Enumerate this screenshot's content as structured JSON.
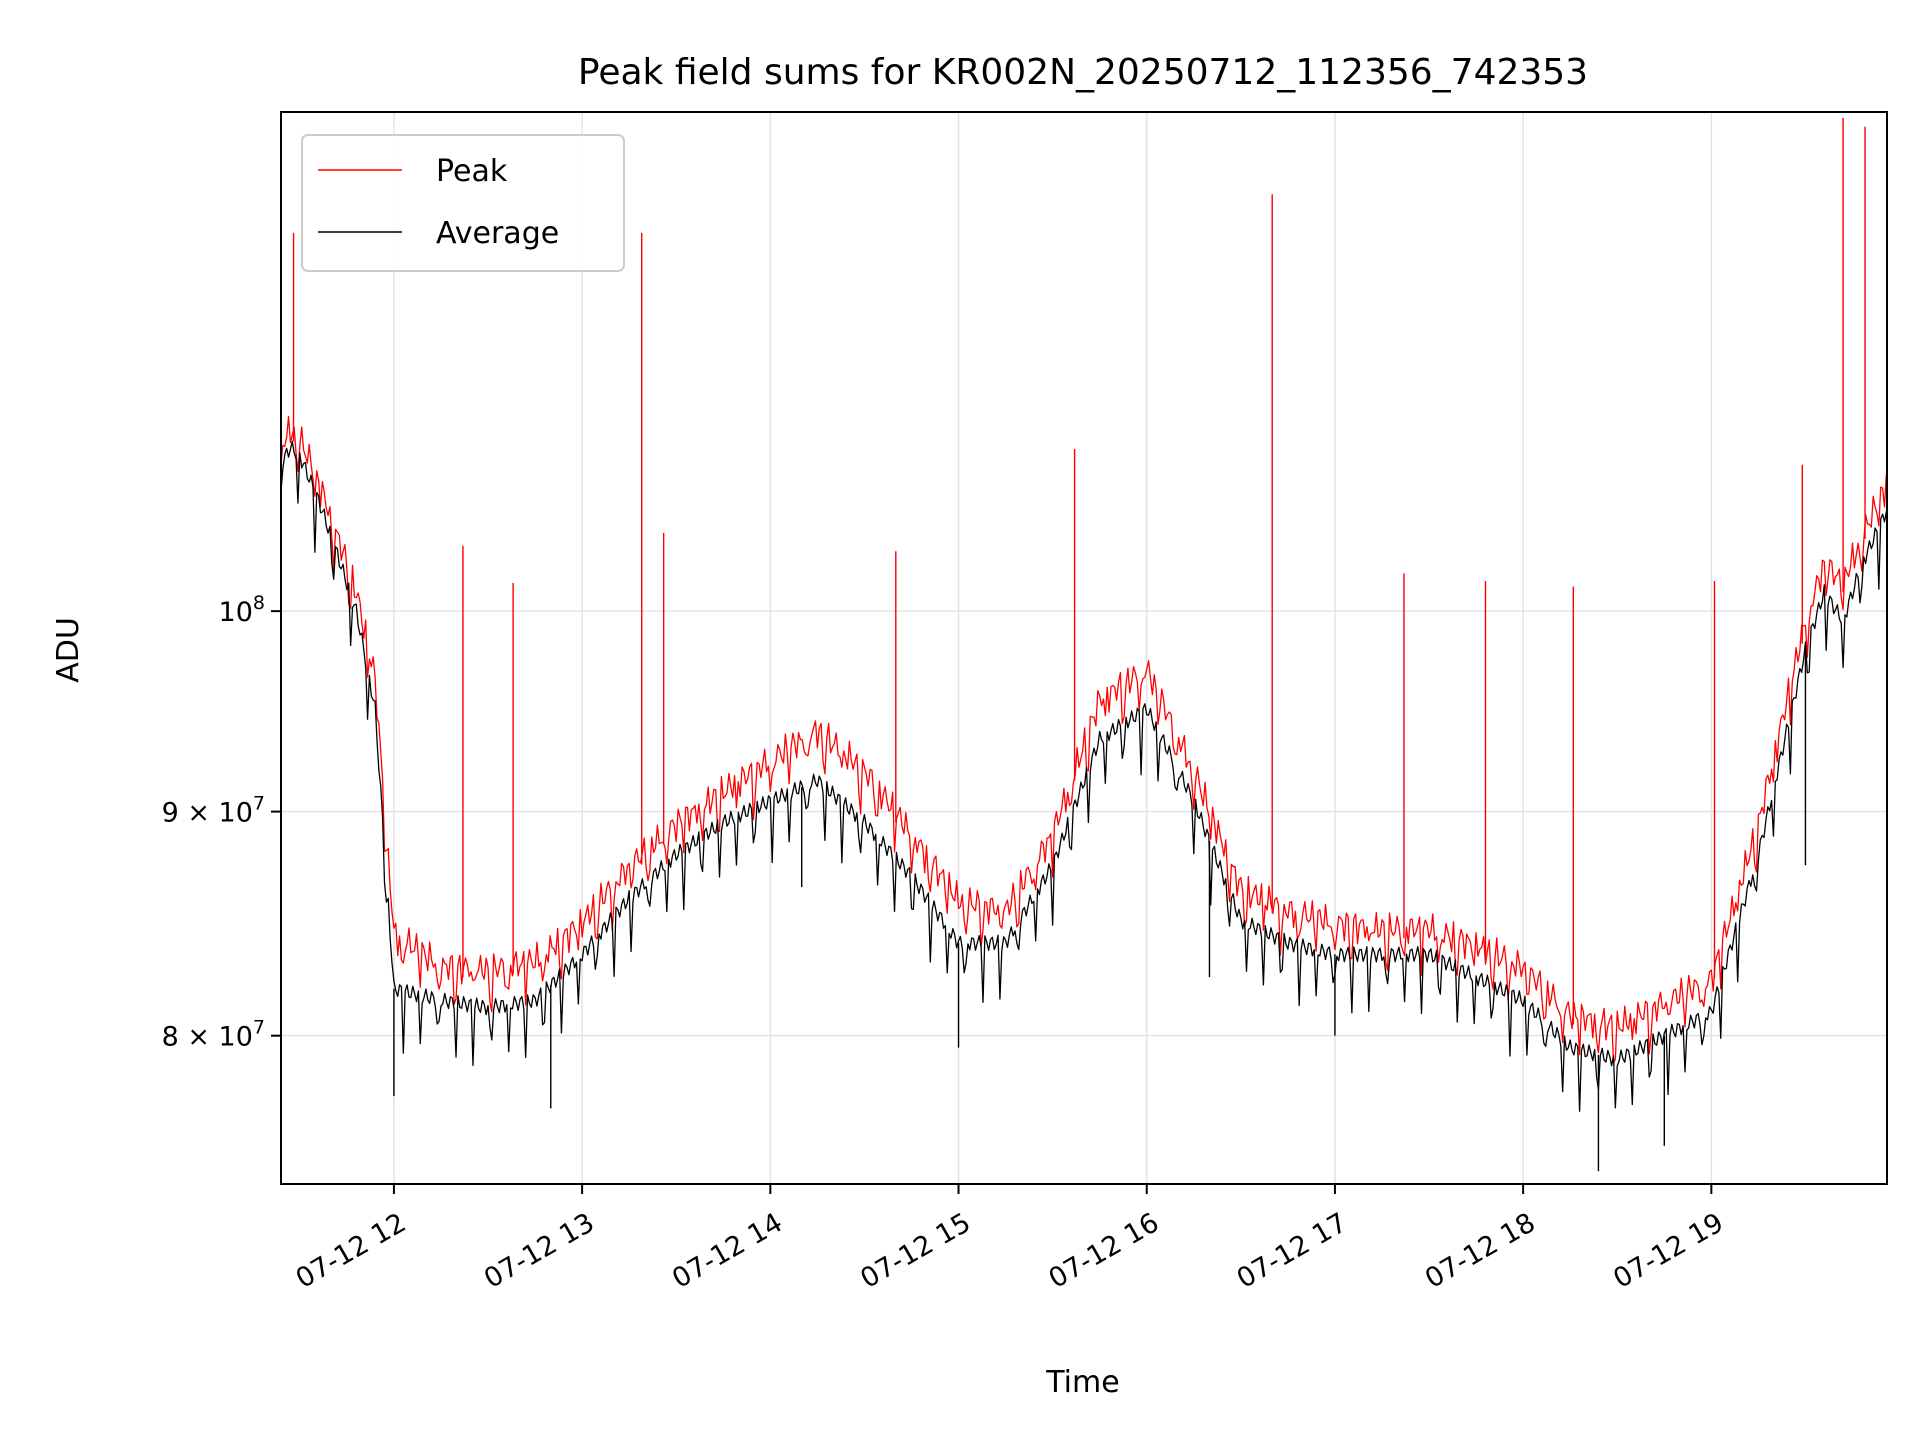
{
  "chart_data": {
    "type": "line",
    "title": "Peak field sums for KR002N_20250712_112356_742353",
    "xlabel": "Time",
    "ylabel": "ADU",
    "y_scale": "log",
    "x_range": [
      "07-12 11:24",
      "07-12 19:56"
    ],
    "ylim": [
      74000000,
      130000000
    ],
    "grid": true,
    "legend_position": "top-left",
    "x_ticks": [
      {
        "time": "07-12 12:00",
        "label": "07-12 12"
      },
      {
        "time": "07-12 13:00",
        "label": "07-12 13"
      },
      {
        "time": "07-12 14:00",
        "label": "07-12 14"
      },
      {
        "time": "07-12 15:00",
        "label": "07-12 15"
      },
      {
        "time": "07-12 16:00",
        "label": "07-12 16"
      },
      {
        "time": "07-12 17:00",
        "label": "07-12 17"
      },
      {
        "time": "07-12 18:00",
        "label": "07-12 18"
      },
      {
        "time": "07-12 19:00",
        "label": "07-12 19"
      }
    ],
    "y_ticks": [
      {
        "value": 80000000,
        "label": "8 × 10",
        "exp": "7"
      },
      {
        "value": 90000000,
        "label": "9 × 10",
        "exp": "7"
      },
      {
        "value": 100000000,
        "label": "10",
        "exp": "8"
      }
    ],
    "series": [
      {
        "name": "Peak",
        "color": "#ff0000",
        "points": [
          [
            "07-12 11:24",
            108500000
          ],
          [
            "07-12 11:27",
            109500000
          ],
          [
            "07-12 11:30",
            109000000
          ],
          [
            "07-12 11:36",
            106500000
          ],
          [
            "07-12 11:42",
            103500000
          ],
          [
            "07-12 11:48",
            100500000
          ],
          [
            "07-12 11:54",
            96000000
          ],
          [
            "07-12 12:00",
            84000000
          ],
          [
            "07-12 12:15",
            82600000
          ],
          [
            "07-12 12:30",
            82400000
          ],
          [
            "07-12 12:45",
            82800000
          ],
          [
            "07-12 13:00",
            84500000
          ],
          [
            "07-12 13:15",
            87000000
          ],
          [
            "07-12 13:30",
            89000000
          ],
          [
            "07-12 13:45",
            90500000
          ],
          [
            "07-12 14:00",
            92000000
          ],
          [
            "07-12 14:15",
            93500000
          ],
          [
            "07-12 14:30",
            91500000
          ],
          [
            "07-12 14:45",
            88500000
          ],
          [
            "07-12 15:00",
            85500000
          ],
          [
            "07-12 15:15",
            85000000
          ],
          [
            "07-12 15:30",
            88500000
          ],
          [
            "07-12 15:45",
            95000000
          ],
          [
            "07-12 16:00",
            96500000
          ],
          [
            "07-12 16:15",
            91500000
          ],
          [
            "07-12 16:30",
            86000000
          ],
          [
            "07-12 16:45",
            85000000
          ],
          [
            "07-12 17:00",
            84500000
          ],
          [
            "07-12 17:15",
            84200000
          ],
          [
            "07-12 17:30",
            84200000
          ],
          [
            "07-12 17:45",
            83500000
          ],
          [
            "07-12 18:00",
            82500000
          ],
          [
            "07-12 18:15",
            80500000
          ],
          [
            "07-12 18:30",
            80000000
          ],
          [
            "07-12 18:45",
            81000000
          ],
          [
            "07-12 19:00",
            82000000
          ],
          [
            "07-12 19:15",
            89000000
          ],
          [
            "07-12 19:30",
            99000000
          ],
          [
            "07-12 19:36",
            102000000
          ],
          [
            "07-12 19:42",
            101000000
          ],
          [
            "07-12 19:48",
            103500000
          ],
          [
            "07-12 19:56",
            106500000
          ]
        ],
        "spikes": [
          [
            "07-12 11:28",
            122000000
          ],
          [
            "07-12 12:22",
            103500000
          ],
          [
            "07-12 12:38",
            101500000
          ],
          [
            "07-12 13:19",
            122000000
          ],
          [
            "07-12 13:26",
            104200000
          ],
          [
            "07-12 14:40",
            103200000
          ],
          [
            "07-12 15:37",
            108900000
          ],
          [
            "07-12 16:40",
            124500000
          ],
          [
            "07-12 17:22",
            102000000
          ],
          [
            "07-12 17:48",
            101600000
          ],
          [
            "07-12 18:16",
            101300000
          ],
          [
            "07-12 19:01",
            101600000
          ],
          [
            "07-12 19:29",
            108000000
          ],
          [
            "07-12 19:42",
            129600000
          ],
          [
            "07-12 19:49",
            129000000
          ]
        ]
      },
      {
        "name": "Average",
        "color": "#000000",
        "points": [
          [
            "07-12 11:24",
            108000000
          ],
          [
            "07-12 11:27",
            109000000
          ],
          [
            "07-12 11:30",
            108500000
          ],
          [
            "07-12 11:36",
            106000000
          ],
          [
            "07-12 11:42",
            103000000
          ],
          [
            "07-12 11:48",
            100000000
          ],
          [
            "07-12 11:54",
            95000000
          ],
          [
            "07-12 12:00",
            82000000
          ],
          [
            "07-12 12:15",
            81500000
          ],
          [
            "07-12 12:30",
            81200000
          ],
          [
            "07-12 12:45",
            81500000
          ],
          [
            "07-12 13:00",
            83500000
          ],
          [
            "07-12 13:15",
            86000000
          ],
          [
            "07-12 13:30",
            88000000
          ],
          [
            "07-12 13:45",
            89500000
          ],
          [
            "07-12 14:00",
            90500000
          ],
          [
            "07-12 14:15",
            91500000
          ],
          [
            "07-12 14:30",
            89500000
          ],
          [
            "07-12 14:45",
            87000000
          ],
          [
            "07-12 15:00",
            84000000
          ],
          [
            "07-12 15:15",
            84000000
          ],
          [
            "07-12 15:30",
            87500000
          ],
          [
            "07-12 15:45",
            93500000
          ],
          [
            "07-12 16:00",
            95000000
          ],
          [
            "07-12 16:15",
            90500000
          ],
          [
            "07-12 16:30",
            85000000
          ],
          [
            "07-12 16:45",
            84000000
          ],
          [
            "07-12 17:00",
            83500000
          ],
          [
            "07-12 17:15",
            83500000
          ],
          [
            "07-12 17:30",
            83500000
          ],
          [
            "07-12 17:45",
            82500000
          ],
          [
            "07-12 18:00",
            81500000
          ],
          [
            "07-12 18:15",
            79500000
          ],
          [
            "07-12 18:30",
            79000000
          ],
          [
            "07-12 18:45",
            80000000
          ],
          [
            "07-12 19:00",
            81000000
          ],
          [
            "07-12 19:15",
            88000000
          ],
          [
            "07-12 19:30",
            98000000
          ],
          [
            "07-12 19:36",
            101000000
          ],
          [
            "07-12 19:42",
            99500000
          ],
          [
            "07-12 19:48",
            102500000
          ],
          [
            "07-12 19:56",
            105500000
          ]
        ],
        "dips": [
          [
            "07-12 12:00",
            77500000
          ],
          [
            "07-12 12:50",
            77000000
          ],
          [
            "07-12 14:10",
            86500000
          ],
          [
            "07-12 15:00",
            79500000
          ],
          [
            "07-12 16:20",
            82500000
          ],
          [
            "07-12 17:00",
            80000000
          ],
          [
            "07-12 18:24",
            74500000
          ],
          [
            "07-12 18:45",
            75500000
          ],
          [
            "07-12 19:30",
            87500000
          ]
        ]
      }
    ]
  }
}
